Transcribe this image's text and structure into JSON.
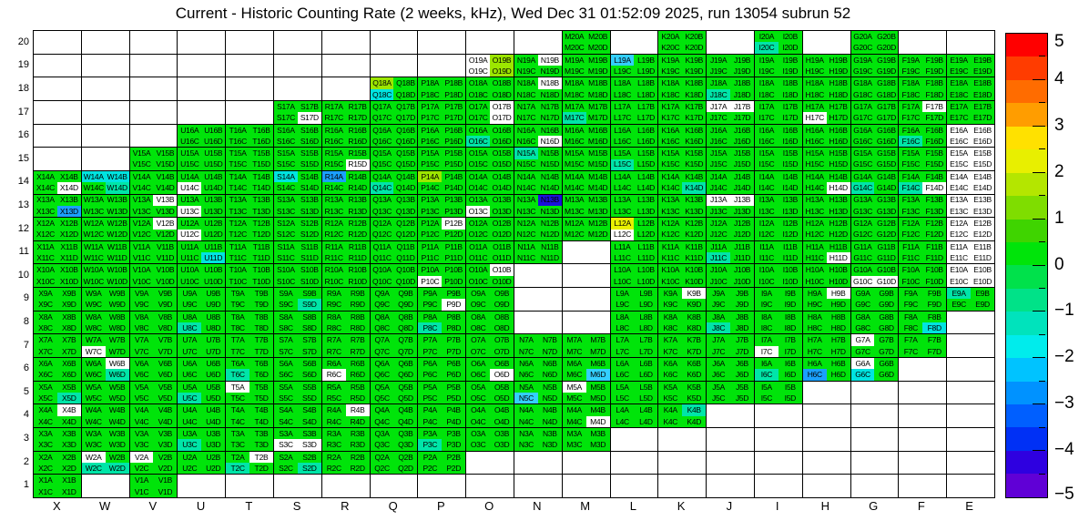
{
  "chart_data": {
    "type": "heatmap",
    "title": "Current - Historic Counting Rate (2 weeks, kHz), Wed Dec 31 01:52:09 2025, run 13054 subrun 52",
    "columns": [
      "X",
      "W",
      "V",
      "U",
      "T",
      "S",
      "R",
      "Q",
      "P",
      "O",
      "N",
      "M",
      "L",
      "K",
      "J",
      "I",
      "H",
      "G",
      "F",
      "E"
    ],
    "rows": [
      20,
      19,
      18,
      17,
      16,
      15,
      14,
      13,
      12,
      11,
      10,
      9,
      8,
      7,
      6,
      5,
      4,
      3,
      2,
      1
    ],
    "quadrants": [
      "A",
      "B",
      "C",
      "D"
    ],
    "x_axis_labels": [
      "X",
      "W",
      "V",
      "U",
      "T",
      "S",
      "R",
      "Q",
      "P",
      "O",
      "N",
      "M",
      "L",
      "K",
      "J",
      "I",
      "H",
      "G",
      "F",
      "E"
    ],
    "y_axis_labels": [
      "20",
      "19",
      "18",
      "17",
      "16",
      "15",
      "14",
      "13",
      "12",
      "11",
      "10",
      "9",
      "8",
      "7",
      "6",
      "5",
      "4",
      "3",
      "2",
      "1"
    ],
    "rows_present": {
      "20": [
        "M",
        "K",
        "I",
        "G"
      ],
      "19": [
        "O",
        "N",
        "M",
        "L",
        "K",
        "J",
        "I",
        "H",
        "G",
        "F",
        "E"
      ],
      "18": [
        "Q",
        "P",
        "O",
        "N",
        "M",
        "L",
        "K",
        "J",
        "I",
        "H",
        "G",
        "F",
        "E"
      ],
      "17": [
        "S",
        "R",
        "Q",
        "P",
        "O",
        "N",
        "M",
        "L",
        "K",
        "J",
        "I",
        "H",
        "G",
        "F",
        "E"
      ],
      "16": [
        "U",
        "T",
        "S",
        "R",
        "Q",
        "P",
        "O",
        "N",
        "M",
        "L",
        "K",
        "J",
        "I",
        "H",
        "G",
        "F",
        "E"
      ],
      "15": [
        "V",
        "U",
        "T",
        "S",
        "R",
        "Q",
        "P",
        "O",
        "N",
        "M",
        "L",
        "K",
        "J",
        "I",
        "H",
        "G",
        "F",
        "E"
      ],
      "14": [
        "X",
        "W",
        "V",
        "U",
        "T",
        "S",
        "R",
        "Q",
        "P",
        "O",
        "N",
        "M",
        "L",
        "K",
        "J",
        "I",
        "H",
        "G",
        "F",
        "E"
      ],
      "13": [
        "X",
        "W",
        "V",
        "U",
        "T",
        "S",
        "R",
        "Q",
        "P",
        "O",
        "N",
        "M",
        "L",
        "K",
        "J",
        "I",
        "H",
        "G",
        "F",
        "E"
      ],
      "12": [
        "X",
        "W",
        "V",
        "U",
        "T",
        "S",
        "R",
        "Q",
        "P",
        "O",
        "N",
        "M",
        "L",
        "K",
        "J",
        "I",
        "H",
        "G",
        "F",
        "E"
      ],
      "11": [
        "X",
        "W",
        "V",
        "U",
        "T",
        "S",
        "R",
        "Q",
        "P",
        "O",
        "N",
        "L",
        "K",
        "J",
        "I",
        "H",
        "G",
        "F",
        "E"
      ],
      "10": [
        "X",
        "W",
        "V",
        "U",
        "T",
        "S",
        "R",
        "Q",
        "P",
        "O",
        "L",
        "K",
        "J",
        "I",
        "H",
        "G",
        "F",
        "E"
      ],
      "9": [
        "X",
        "W",
        "V",
        "U",
        "T",
        "S",
        "R",
        "Q",
        "P",
        "O",
        "L",
        "K",
        "J",
        "I",
        "H",
        "G",
        "F",
        "E"
      ],
      "8": [
        "X",
        "W",
        "V",
        "U",
        "T",
        "S",
        "R",
        "Q",
        "P",
        "O",
        "L",
        "K",
        "J",
        "I",
        "H",
        "G",
        "F"
      ],
      "7": [
        "X",
        "W",
        "V",
        "U",
        "T",
        "S",
        "R",
        "Q",
        "P",
        "O",
        "N",
        "M",
        "L",
        "K",
        "J",
        "I",
        "H",
        "G",
        "F"
      ],
      "6": [
        "X",
        "W",
        "V",
        "U",
        "T",
        "S",
        "R",
        "Q",
        "P",
        "O",
        "N",
        "M",
        "L",
        "K",
        "J",
        "I",
        "H",
        "G"
      ],
      "5": [
        "X",
        "W",
        "V",
        "U",
        "T",
        "S",
        "R",
        "Q",
        "P",
        "O",
        "N",
        "M",
        "L",
        "K",
        "J",
        "I"
      ],
      "4": [
        "X",
        "W",
        "V",
        "U",
        "T",
        "S",
        "R",
        "Q",
        "P",
        "O",
        "N",
        "M",
        "L",
        "K"
      ],
      "3": [
        "X",
        "W",
        "V",
        "U",
        "T",
        "S",
        "R",
        "Q",
        "P",
        "O",
        "N",
        "M"
      ],
      "2": [
        "X",
        "W",
        "V",
        "U",
        "T",
        "S",
        "R",
        "Q",
        "P"
      ],
      "1": [
        "X",
        "V"
      ]
    },
    "palette": {
      "default": "#00e40a",
      "white": "#ffffff",
      "yellow": "#e9f000",
      "yellowgreen": "#9ce600",
      "teal": "#00e5a8",
      "cyan": "#00e4e0",
      "lightblue": "#33cfff",
      "blue": "#1aa0ff",
      "darkblue": "#1a10dd"
    },
    "special_quadrants": {
      "I20C": "teal",
      "O19A": "white",
      "O19B": "yellowgreen",
      "O19C": "white",
      "O19D": "yellowgreen",
      "N19B": "white",
      "L19A": "lightblue",
      "Q18A": "yellowgreen",
      "Q18C": "cyan",
      "N18B": "white",
      "J18C": "teal",
      "S17D": "white",
      "O17B": "white",
      "O17D": "white",
      "M17C": "teal",
      "J17A": "white",
      "J17B": "white",
      "H17C": "white",
      "F17B": "white",
      "O16C": "teal",
      "N16D": "white",
      "F16C": "teal",
      "E16A": "white",
      "E16B": "white",
      "E16C": "white",
      "E16D": "white",
      "R15D": "white",
      "N15A": "teal",
      "L15C": "teal",
      "E15A": "white",
      "E15B": "white",
      "E15C": "white",
      "E15D": "white",
      "X14D": "white",
      "W14A": "cyan",
      "W14B": "cyan",
      "W14D": "teal",
      "U14C": "white",
      "S14A": "cyan",
      "R14A": "blue",
      "Q14C": "teal",
      "P14A": "yellowgreen",
      "K14D": "teal",
      "H14D": "white",
      "G14C": "teal",
      "F14C": "teal",
      "F14D": "white",
      "E14A": "white",
      "E14B": "white",
      "E14C": "white",
      "E14D": "white",
      "X13D": "blue",
      "V13B": "white",
      "U13C": "white",
      "O13C": "white",
      "N13B": "darkblue",
      "J13A": "white",
      "J13B": "white",
      "E13A": "white",
      "E13B": "white",
      "E13C": "white",
      "E13D": "white",
      "V12B": "white",
      "U12C": "white",
      "P12B": "white",
      "L12A": "yellow",
      "L12C": "white",
      "E12A": "white",
      "E12B": "white",
      "E12C": "white",
      "E12D": "white",
      "U11D": "cyan",
      "J11C": "teal",
      "H11D": "white",
      "E11A": "white",
      "E11B": "white",
      "E11C": "white",
      "E11D": "white",
      "P10C": "white",
      "O10B": "white",
      "G10C": "white",
      "G10D": "white",
      "E10A": "white",
      "E10B": "white",
      "E10C": "white",
      "E10D": "white",
      "S9D": "teal",
      "P9D": "white",
      "K9B": "white",
      "H9B": "white",
      "E9A": "teal",
      "U8C": "teal",
      "P8C": "teal",
      "J8C": "teal",
      "F8D": "cyan",
      "W7C": "white",
      "I7C": "white",
      "G7A": "white",
      "W6B": "white",
      "W6D": "teal",
      "T6C": "teal",
      "R6C": "white",
      "O6D": "white",
      "M6D": "lightblue",
      "I6C": "teal",
      "H6C": "blue",
      "G6A": "white",
      "G6C": "cyan",
      "X5D": "teal",
      "U5C": "teal",
      "T5A": "white",
      "N5C": "lightblue",
      "M5A": "white",
      "X4B": "white",
      "R4B": "white",
      "M4D": "white",
      "K4B": "teal",
      "U3C": "teal",
      "S3C": "white",
      "S3D": "white",
      "P3C": "teal",
      "W2A": "white",
      "W2C": "teal",
      "W2D": "teal",
      "V2A": "white",
      "T2B": "white",
      "T2C": "teal",
      "S2D": "teal"
    },
    "colorbar": {
      "min": -5,
      "max": 5,
      "tick_labels": [
        "5",
        "4",
        "3",
        "2",
        "1",
        "0",
        "−1",
        "−2",
        "−3",
        "−4",
        "−5"
      ],
      "tick_values": [
        5,
        4,
        3,
        2,
        1,
        0,
        -1,
        -2,
        -3,
        -4,
        -5
      ],
      "bands_top_to_bottom": [
        "#ff0000",
        "#ff3c00",
        "#ff6c00",
        "#ff9d00",
        "#ffe100",
        "#e8ef00",
        "#b4e600",
        "#7fdd00",
        "#3fd400",
        "#00e40a",
        "#00e14b",
        "#00e288",
        "#00e3bc",
        "#00ecec",
        "#00c3ff",
        "#0092ff",
        "#005fff",
        "#0030f5",
        "#2e00e0",
        "#6000d6"
      ]
    }
  }
}
